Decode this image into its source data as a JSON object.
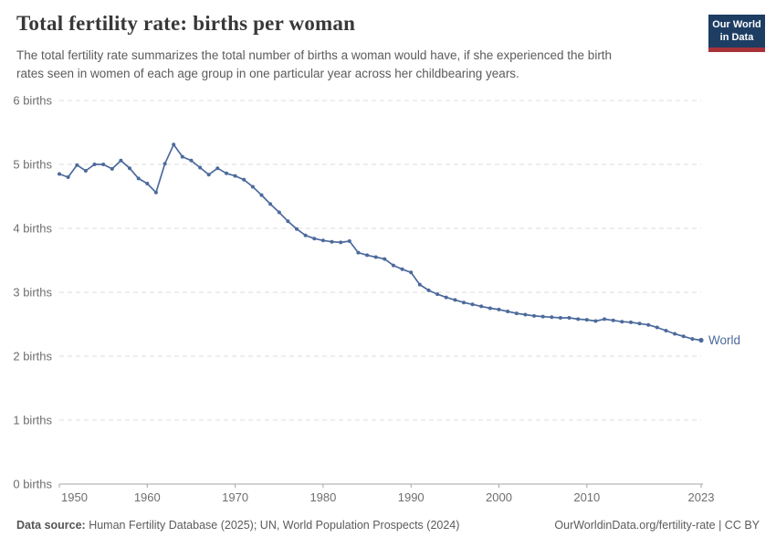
{
  "header": {
    "title": "Total fertility rate: births per woman",
    "subtitle_lines": [
      "The total fertility rate summarizes the total number of births a woman would have, if she experienced the birth",
      "rates seen in women of each age group in one particular year across her childbearing years."
    ],
    "logo": {
      "line1": "Our World",
      "line2": "in Data",
      "bg_color": "#1d3d63",
      "accent_color": "#a8323a"
    }
  },
  "footer": {
    "source_label": "Data source:",
    "source_rest": " Human Fertility Database (2025); UN, World Population Prospects (2024)",
    "credit": "OurWorldinData.org/fertility-rate | CC BY"
  },
  "chart_data": {
    "type": "line",
    "title": "Total fertility rate: births per woman",
    "xlabel": "",
    "ylabel": "births",
    "xlim": [
      1950,
      2023
    ],
    "ylim": [
      0,
      6
    ],
    "grid": "horizontal-dashed",
    "legend_position": "end-of-line",
    "colors": {
      "line": "#4c6a9c",
      "gridline": "#dcdcdc",
      "axis": "#a5a5a5",
      "tick_text": "#6e6e6e"
    },
    "yticks": [
      {
        "value": 0,
        "label": "0 births"
      },
      {
        "value": 1,
        "label": "1 births"
      },
      {
        "value": 2,
        "label": "2 births"
      },
      {
        "value": 3,
        "label": "3 births"
      },
      {
        "value": 4,
        "label": "4 births"
      },
      {
        "value": 5,
        "label": "5 births"
      },
      {
        "value": 6,
        "label": "6 births"
      }
    ],
    "xticks": [
      1950,
      1960,
      1970,
      1980,
      1990,
      2000,
      2010,
      2023
    ],
    "series": [
      {
        "name": "World",
        "end_label": "World",
        "color": "#4c6a9c",
        "x": [
          1950,
          1951,
          1952,
          1953,
          1954,
          1955,
          1956,
          1957,
          1958,
          1959,
          1960,
          1961,
          1962,
          1963,
          1964,
          1965,
          1966,
          1967,
          1968,
          1969,
          1970,
          1971,
          1972,
          1973,
          1974,
          1975,
          1976,
          1977,
          1978,
          1979,
          1980,
          1981,
          1982,
          1983,
          1984,
          1985,
          1986,
          1987,
          1988,
          1989,
          1990,
          1991,
          1992,
          1993,
          1994,
          1995,
          1996,
          1997,
          1998,
          1999,
          2000,
          2001,
          2002,
          2003,
          2004,
          2005,
          2006,
          2007,
          2008,
          2009,
          2010,
          2011,
          2012,
          2013,
          2014,
          2015,
          2016,
          2017,
          2018,
          2019,
          2020,
          2021,
          2022,
          2023
        ],
        "values": [
          4.85,
          4.8,
          4.99,
          4.9,
          5.0,
          5.0,
          4.93,
          5.06,
          4.94,
          4.78,
          4.7,
          4.56,
          5.01,
          5.31,
          5.12,
          5.06,
          4.95,
          4.84,
          4.94,
          4.86,
          4.82,
          4.76,
          4.65,
          4.52,
          4.38,
          4.25,
          4.11,
          3.99,
          3.89,
          3.84,
          3.81,
          3.79,
          3.78,
          3.8,
          3.62,
          3.58,
          3.55,
          3.52,
          3.42,
          3.36,
          3.31,
          3.12,
          3.03,
          2.97,
          2.92,
          2.88,
          2.84,
          2.81,
          2.78,
          2.75,
          2.73,
          2.7,
          2.67,
          2.65,
          2.63,
          2.62,
          2.61,
          2.6,
          2.6,
          2.58,
          2.57,
          2.55,
          2.58,
          2.56,
          2.54,
          2.53,
          2.51,
          2.49,
          2.45,
          2.4,
          2.35,
          2.31,
          2.27,
          2.25
        ]
      }
    ]
  }
}
